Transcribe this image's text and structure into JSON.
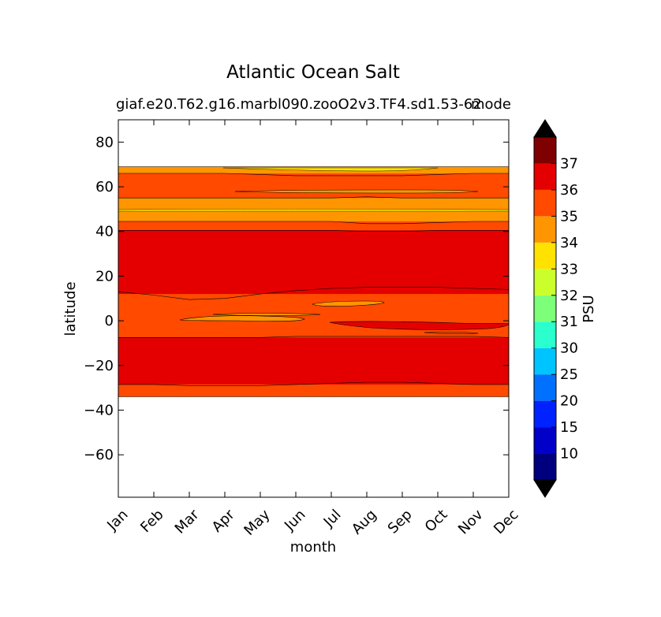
{
  "chart_data": {
    "type": "contour",
    "title": "Atlantic Ocean Salt",
    "subtitle": "giaf.e20.T62.g16.marbl090.zooO2v3.TF4.sd1.53-62",
    "subtitle_right": "mode",
    "xlabel": "month",
    "ylabel": "latitude",
    "months": [
      "Jan",
      "Feb",
      "Mar",
      "Apr",
      "May",
      "Jun",
      "Jul",
      "Aug",
      "Sep",
      "Oct",
      "Nov",
      "Dec"
    ],
    "y_ticks": [
      80,
      60,
      40,
      20,
      0,
      -20,
      -40,
      -60
    ],
    "ylim": [
      -79,
      90
    ],
    "colorbar": {
      "label": "PSU",
      "levels": [
        10,
        15,
        20,
        25,
        30,
        31,
        32,
        33,
        34,
        35,
        36,
        37
      ],
      "tick_labels": [
        "10",
        "15",
        "20",
        "25",
        "30",
        "31",
        "32",
        "33",
        "34",
        "35",
        "36",
        "37"
      ],
      "band_colors": [
        "#00007f",
        "#0000c8",
        "#0022ff",
        "#0070ff",
        "#00c4ff",
        "#2affcd",
        "#7dff7a",
        "#caff2c",
        "#ffe200",
        "#ff9500",
        "#ff4a00",
        "#e40000",
        "#7f0000"
      ],
      "extend": "both"
    },
    "fields": [
      {
        "level": 34,
        "color": "#ff9500",
        "lat_min": -34,
        "lat_max": 69
      },
      {
        "level": 35,
        "color": "#ff4a00",
        "lat_min": -34,
        "lat_max": 44.5
      },
      {
        "level": 35,
        "color": "#ff4a00",
        "lat_min": 55,
        "lat_max": 66
      },
      {
        "level": 36,
        "color": "#e40000",
        "lat_min": -28.5,
        "lat_max": -7.5
      },
      {
        "level": 36,
        "color": "#e40000",
        "lat_min": 12,
        "lat_max": 40.5
      }
    ],
    "contours": [
      {
        "level": 35,
        "color": "#ff4a00",
        "description": "35-36 band bottom",
        "lats": [
          -34,
          -34,
          -34,
          -34,
          -34,
          -34,
          -34,
          -34,
          -34,
          -34,
          -34,
          -34
        ]
      },
      {
        "level": 36,
        "color": "#e40000",
        "description": "south red band bottom",
        "lats": [
          -28.5,
          -28.5,
          -29,
          -29,
          -29,
          -28.5,
          -28,
          -27.5,
          -27.5,
          -28,
          -28.5,
          -28.5
        ]
      },
      {
        "level": 36,
        "color": "#e40000",
        "description": "south red band top",
        "lats": [
          -7.5,
          -7.5,
          -7.5,
          -7.5,
          -7.5,
          -7,
          -7,
          -7,
          -7,
          -7,
          -7,
          -7.5
        ]
      },
      {
        "level": 36,
        "color": "#e40000",
        "description": "north red band bottom",
        "lats": [
          13,
          11.5,
          9.5,
          10,
          12,
          13.5,
          14.5,
          15,
          15,
          15,
          14.5,
          14
        ]
      },
      {
        "level": 36,
        "color": "#e40000",
        "description": "north red band top",
        "lats": [
          40.5,
          40.5,
          40.5,
          40.5,
          40.5,
          40.5,
          40.5,
          40,
          40,
          40.5,
          40.5,
          40.5
        ]
      },
      {
        "level": 35,
        "color": "#ff4a00",
        "description": "35 band top",
        "lats": [
          44.5,
          44.5,
          44.5,
          44.5,
          44.5,
          44.5,
          44.5,
          43.5,
          43.5,
          44,
          44.5,
          44.5
        ]
      },
      {
        "level": 34,
        "color": "#ff9500",
        "description": "35 band bottom (north)",
        "lats": [
          55,
          55,
          55,
          55,
          55,
          55,
          55,
          55.5,
          55,
          55,
          55,
          55
        ]
      },
      {
        "level": 35,
        "color": "#ff4a00",
        "description": "35 band top (north)",
        "lats": [
          66,
          66,
          66,
          66,
          65.5,
          65,
          65,
          65,
          65,
          65.5,
          66,
          66
        ]
      },
      {
        "level": 34,
        "color": "#ff9500",
        "description": "34 band top",
        "lats": [
          69,
          69,
          69,
          69,
          69,
          69,
          69,
          69,
          69,
          69,
          69,
          69
        ]
      }
    ]
  }
}
